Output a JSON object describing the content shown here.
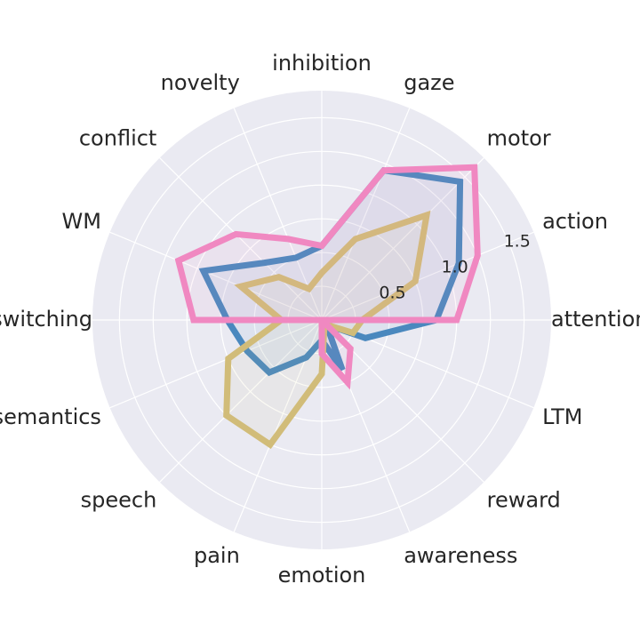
{
  "chart_data": {
    "type": "radar",
    "axes": [
      "attention",
      "action",
      "motor",
      "gaze",
      "inhibition",
      "novelty",
      "conflict",
      "WM",
      "switching",
      "semantics",
      "speech",
      "pain",
      "emotion",
      "awareness",
      "reward",
      "LTM"
    ],
    "radial_ticks": [
      "0.5",
      "1.0",
      "1.5"
    ],
    "rlim": [
      0,
      1.7
    ],
    "grid": true,
    "series": [
      {
        "color": "#4A88BE",
        "values": [
          0.85,
          1.1,
          1.45,
          1.2,
          0.55,
          0.5,
          0.6,
          0.95,
          0.7,
          0.6,
          0.55,
          0.3,
          0.15,
          0.4,
          0.05,
          0.35
        ]
      },
      {
        "color": "#D1BC79",
        "values": [
          0.3,
          0.75,
          1.1,
          0.65,
          0.35,
          0.25,
          0.45,
          0.65,
          0.3,
          0.75,
          1.0,
          1.0,
          0.4,
          0.05,
          0.05,
          0.25
        ]
      },
      {
        "color": "#F088C1",
        "values": [
          1.0,
          1.25,
          1.6,
          1.2,
          0.55,
          0.65,
          0.9,
          1.15,
          0.95,
          0.0,
          0.0,
          0.0,
          0.25,
          0.5,
          0.3,
          0.0
        ]
      }
    ]
  }
}
